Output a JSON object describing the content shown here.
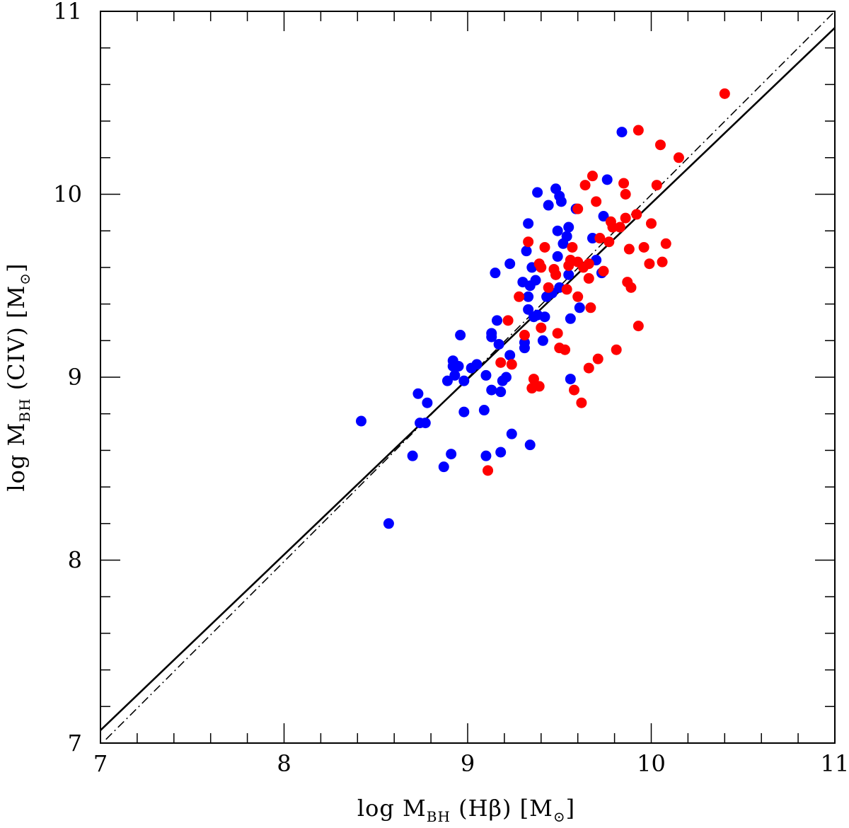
{
  "chart_data": {
    "type": "scatter",
    "title": "",
    "xlabel": {
      "prefix": "log M",
      "sub": "BH",
      "suffix": " (Hβ) [M",
      "sun": "⊙",
      "close": "]"
    },
    "ylabel": {
      "prefix": "log M",
      "sub": "BH",
      "suffix": " (CIV) [M",
      "sun": "⊙",
      "close": "]"
    },
    "xlim": [
      7,
      11
    ],
    "ylim": [
      7,
      11
    ],
    "xticks": [
      7,
      8,
      9,
      10,
      11
    ],
    "yticks": [
      7,
      8,
      9,
      10,
      11
    ],
    "x_tick_labels": [
      "7",
      "8",
      "9",
      "10",
      "11"
    ],
    "y_tick_labels": [
      "7",
      "8",
      "9",
      "10",
      "11"
    ],
    "minor_step": 0.2,
    "grid": false,
    "colors": {
      "blue": "#0000ff",
      "red": "#ff0000",
      "line": "#000000"
    },
    "series": [
      {
        "color": "#0000ff",
        "points": [
          [
            8.42,
            8.76
          ],
          [
            8.57,
            8.2
          ],
          [
            8.7,
            8.57
          ],
          [
            8.73,
            8.91
          ],
          [
            8.74,
            8.75
          ],
          [
            8.77,
            8.75
          ],
          [
            8.78,
            8.86
          ],
          [
            8.87,
            8.51
          ],
          [
            8.89,
            8.98
          ],
          [
            8.91,
            8.58
          ],
          [
            8.92,
            9.06
          ],
          [
            8.92,
            9.09
          ],
          [
            8.93,
            9.01
          ],
          [
            8.95,
            9.06
          ],
          [
            8.96,
            9.23
          ],
          [
            8.98,
            8.81
          ],
          [
            8.98,
            8.98
          ],
          [
            9.02,
            9.05
          ],
          [
            9.05,
            9.07
          ],
          [
            9.09,
            8.82
          ],
          [
            9.1,
            8.57
          ],
          [
            9.1,
            9.01
          ],
          [
            9.13,
            8.93
          ],
          [
            9.13,
            9.22
          ],
          [
            9.13,
            9.24
          ],
          [
            9.15,
            9.57
          ],
          [
            9.16,
            9.31
          ],
          [
            9.17,
            9.18
          ],
          [
            9.18,
            8.59
          ],
          [
            9.18,
            8.92
          ],
          [
            9.19,
            8.98
          ],
          [
            9.21,
            9.0
          ],
          [
            9.23,
            9.62
          ],
          [
            9.23,
            9.12
          ],
          [
            9.24,
            8.69
          ],
          [
            9.3,
            9.52
          ],
          [
            9.31,
            9.16
          ],
          [
            9.31,
            9.19
          ],
          [
            9.32,
            9.69
          ],
          [
            9.33,
            9.84
          ],
          [
            9.33,
            9.37
          ],
          [
            9.33,
            9.44
          ],
          [
            9.34,
            9.5
          ],
          [
            9.35,
            9.6
          ],
          [
            9.34,
            8.63
          ],
          [
            9.36,
            9.33
          ],
          [
            9.37,
            9.53
          ],
          [
            9.38,
            9.34
          ],
          [
            9.38,
            10.01
          ],
          [
            9.41,
            9.2
          ],
          [
            9.42,
            9.33
          ],
          [
            9.43,
            9.44
          ],
          [
            9.44,
            9.94
          ],
          [
            9.46,
            9.46
          ],
          [
            9.48,
            9.56
          ],
          [
            9.48,
            10.03
          ],
          [
            9.49,
            9.66
          ],
          [
            9.49,
            9.8
          ],
          [
            9.5,
            9.49
          ],
          [
            9.5,
            9.99
          ],
          [
            9.51,
            9.96
          ],
          [
            9.52,
            9.73
          ],
          [
            9.54,
            9.77
          ],
          [
            9.55,
            9.82
          ],
          [
            9.55,
            9.56
          ],
          [
            9.56,
            8.99
          ],
          [
            9.56,
            9.32
          ],
          [
            9.59,
            9.92
          ],
          [
            9.61,
            9.38
          ],
          [
            9.68,
            9.76
          ],
          [
            9.7,
            9.64
          ],
          [
            9.73,
            9.57
          ],
          [
            9.74,
            9.88
          ],
          [
            9.76,
            10.08
          ],
          [
            9.84,
            10.34
          ]
        ]
      },
      {
        "color": "#ff0000",
        "points": [
          [
            9.11,
            8.49
          ],
          [
            9.18,
            9.08
          ],
          [
            9.22,
            9.31
          ],
          [
            9.24,
            9.07
          ],
          [
            9.28,
            9.44
          ],
          [
            9.31,
            9.23
          ],
          [
            9.33,
            9.74
          ],
          [
            9.35,
            8.94
          ],
          [
            9.36,
            8.99
          ],
          [
            9.39,
            8.95
          ],
          [
            9.4,
            9.27
          ],
          [
            9.39,
            9.62
          ],
          [
            9.4,
            9.6
          ],
          [
            9.42,
            9.71
          ],
          [
            9.44,
            9.49
          ],
          [
            9.47,
            9.59
          ],
          [
            9.48,
            9.56
          ],
          [
            9.49,
            9.24
          ],
          [
            9.5,
            9.16
          ],
          [
            9.53,
            9.15
          ],
          [
            9.54,
            9.48
          ],
          [
            9.55,
            9.61
          ],
          [
            9.56,
            9.64
          ],
          [
            9.57,
            9.71
          ],
          [
            9.58,
            8.93
          ],
          [
            9.6,
            9.63
          ],
          [
            9.6,
            9.92
          ],
          [
            9.6,
            9.44
          ],
          [
            9.62,
            8.86
          ],
          [
            9.63,
            9.6
          ],
          [
            9.64,
            10.05
          ],
          [
            9.66,
            9.54
          ],
          [
            9.66,
            9.62
          ],
          [
            9.66,
            9.05
          ],
          [
            9.67,
            9.38
          ],
          [
            9.68,
            10.1
          ],
          [
            9.7,
            9.96
          ],
          [
            9.71,
            9.1
          ],
          [
            9.72,
            9.76
          ],
          [
            9.74,
            9.58
          ],
          [
            9.77,
            9.74
          ],
          [
            9.78,
            9.85
          ],
          [
            9.79,
            9.82
          ],
          [
            9.81,
            9.15
          ],
          [
            9.83,
            9.82
          ],
          [
            9.85,
            10.06
          ],
          [
            9.86,
            9.87
          ],
          [
            9.86,
            10.0
          ],
          [
            9.87,
            9.52
          ],
          [
            9.88,
            9.7
          ],
          [
            9.89,
            9.49
          ],
          [
            9.92,
            9.89
          ],
          [
            9.93,
            9.28
          ],
          [
            9.93,
            10.35
          ],
          [
            9.96,
            9.71
          ],
          [
            9.99,
            9.62
          ],
          [
            10.0,
            9.84
          ],
          [
            10.03,
            10.05
          ],
          [
            10.05,
            10.27
          ],
          [
            10.06,
            9.63
          ],
          [
            10.08,
            9.73
          ],
          [
            10.15,
            10.2
          ],
          [
            10.4,
            10.55
          ]
        ]
      }
    ],
    "lines": [
      {
        "style": "solid",
        "x": [
          7,
          11
        ],
        "y": [
          7.07,
          10.91
        ]
      },
      {
        "style": "dashdot",
        "x": [
          7.03,
          11
        ],
        "y": [
          7.02,
          11
        ]
      }
    ]
  }
}
